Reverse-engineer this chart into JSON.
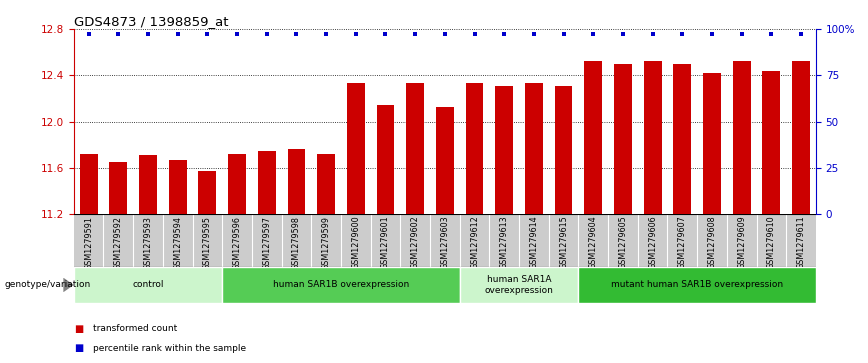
{
  "title": "GDS4873 / 1398859_at",
  "samples": [
    "GSM1279591",
    "GSM1279592",
    "GSM1279593",
    "GSM1279594",
    "GSM1279595",
    "GSM1279596",
    "GSM1279597",
    "GSM1279598",
    "GSM1279599",
    "GSM1279600",
    "GSM1279601",
    "GSM1279602",
    "GSM1279603",
    "GSM1279612",
    "GSM1279613",
    "GSM1279614",
    "GSM1279615",
    "GSM1279604",
    "GSM1279605",
    "GSM1279606",
    "GSM1279607",
    "GSM1279608",
    "GSM1279609",
    "GSM1279610",
    "GSM1279611"
  ],
  "bar_values": [
    11.72,
    11.65,
    11.71,
    11.67,
    11.57,
    11.72,
    11.75,
    11.76,
    11.72,
    12.33,
    12.14,
    12.33,
    12.13,
    12.33,
    12.31,
    12.33,
    12.31,
    12.52,
    12.5,
    12.52,
    12.5,
    12.42,
    12.52,
    12.44,
    12.52
  ],
  "bar_color": "#cc0000",
  "percentile_color": "#0000cc",
  "ymin": 11.2,
  "ymax": 12.8,
  "yticks": [
    11.2,
    11.6,
    12.0,
    12.4,
    12.8
  ],
  "right_yticks": [
    0,
    25,
    50,
    75,
    100
  ],
  "right_ytick_labels": [
    "0",
    "25",
    "50",
    "75",
    "100%"
  ],
  "groups": [
    {
      "label": "control",
      "start": 0,
      "end": 5,
      "color": "#ccf5cc"
    },
    {
      "label": "human SAR1B overexpression",
      "start": 5,
      "end": 13,
      "color": "#55cc55"
    },
    {
      "label": "human SAR1A\noverexpression",
      "start": 13,
      "end": 17,
      "color": "#ccf5cc"
    },
    {
      "label": "mutant human SAR1B overexpression",
      "start": 17,
      "end": 25,
      "color": "#33bb33"
    }
  ],
  "xlabel_area_color": "#cccccc",
  "genotype_label": "genotype/variation",
  "legend_items": [
    {
      "label": "transformed count",
      "color": "#cc0000"
    },
    {
      "label": "percentile rank within the sample",
      "color": "#0000cc"
    }
  ],
  "bg_color": "#ffffff"
}
